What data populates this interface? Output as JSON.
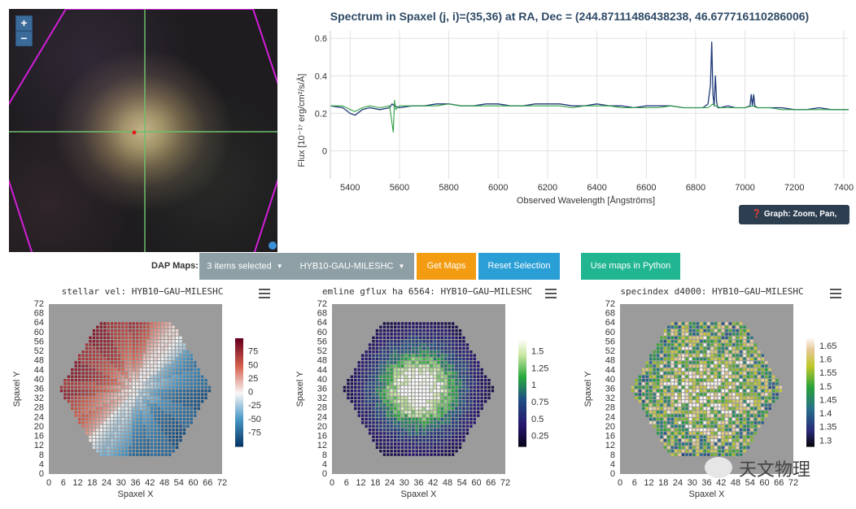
{
  "galaxy_image": {
    "zoom_in_label": "+",
    "zoom_out_label": "−",
    "marker_color": "#e0201c",
    "crosshair_color": "#6dbf6a",
    "hexagon_color": "#d21ed9"
  },
  "spectrum": {
    "graph_help_label": "Graph: Zoom, Pan, Values"
  },
  "toolbar": {
    "label": "DAP Maps:",
    "select_items_label": "3 items selected",
    "select_model_label": "HYB10-GAU-MILESHC",
    "get_maps_label": "Get Maps",
    "reset_label": "Reset Selection",
    "python_label": "Use maps in Python",
    "colors": {
      "select": "#8ea0a6",
      "get_maps": "#f39c12",
      "reset": "#2a9fd6",
      "python": "#21b591"
    }
  },
  "watermark": {
    "text": "天文物理"
  },
  "chart_data": [
    {
      "type": "line",
      "title": "Spectrum in Spaxel (j, i)=(35,36) at RA, Dec = (244.87111486438238, 46.677716110286006)",
      "xlabel": "Observed Wavelength [Ångströms]",
      "ylabel": "Flux [10⁻¹⁷ erg/cm²/s/Å]",
      "xlim": [
        5320,
        7420
      ],
      "ylim": [
        -0.15,
        0.64
      ],
      "x_ticks": [
        5400,
        5600,
        5800,
        6000,
        6200,
        6400,
        6600,
        6800,
        7000,
        7200,
        7400
      ],
      "x_tick_labels": [
        "5400",
        "5600",
        "5800",
        "6000",
        "6200",
        "6400",
        "6600",
        "6800",
        "7000",
        "7200",
        "7400"
      ],
      "y_ticks": [
        0,
        0.2,
        0.4,
        0.6
      ],
      "y_tick_labels": [
        "0",
        "0.2",
        "0.4",
        "0.6"
      ],
      "grid": true,
      "series": [
        {
          "color": "#1f3a78",
          "x": [
            5320,
            5370,
            5400,
            5420,
            5450,
            5480,
            5520,
            5560,
            5570,
            5580,
            5600,
            5650,
            5700,
            5750,
            5800,
            5850,
            5900,
            5950,
            6000,
            6050,
            6100,
            6150,
            6200,
            6250,
            6300,
            6350,
            6400,
            6450,
            6500,
            6550,
            6600,
            6650,
            6700,
            6750,
            6800,
            6830,
            6850,
            6860,
            6865,
            6870,
            6875,
            6880,
            6885,
            6890,
            6900,
            6930,
            6960,
            7000,
            7020,
            7025,
            7030,
            7035,
            7040,
            7050,
            7100,
            7150,
            7200,
            7250,
            7300,
            7350,
            7400,
            7420
          ],
          "y": [
            0.24,
            0.23,
            0.2,
            0.19,
            0.22,
            0.23,
            0.22,
            0.23,
            0.25,
            0.24,
            0.23,
            0.24,
            0.24,
            0.25,
            0.25,
            0.24,
            0.24,
            0.25,
            0.25,
            0.24,
            0.24,
            0.25,
            0.25,
            0.25,
            0.24,
            0.24,
            0.25,
            0.24,
            0.24,
            0.23,
            0.24,
            0.24,
            0.24,
            0.23,
            0.23,
            0.23,
            0.25,
            0.35,
            0.58,
            0.3,
            0.24,
            0.4,
            0.26,
            0.23,
            0.23,
            0.24,
            0.23,
            0.23,
            0.24,
            0.3,
            0.24,
            0.3,
            0.24,
            0.23,
            0.23,
            0.23,
            0.22,
            0.22,
            0.23,
            0.22,
            0.22,
            0.22
          ]
        },
        {
          "color": "#2ea043",
          "x": [
            5320,
            5370,
            5400,
            5420,
            5450,
            5480,
            5520,
            5560,
            5575,
            5580,
            5585,
            5600,
            5650,
            5700,
            5750,
            5800,
            5850,
            5900,
            5950,
            6000,
            6050,
            6100,
            6150,
            6200,
            6250,
            6300,
            6350,
            6400,
            6450,
            6500,
            6550,
            6600,
            6650,
            6700,
            6750,
            6800,
            6850,
            6870,
            6880,
            6900,
            6950,
            7000,
            7030,
            7050,
            7100,
            7150,
            7200,
            7250,
            7300,
            7350,
            7400,
            7420
          ],
          "y": [
            0.24,
            0.24,
            0.22,
            0.21,
            0.23,
            0.24,
            0.23,
            0.24,
            0.1,
            0.27,
            0.22,
            0.24,
            0.24,
            0.24,
            0.24,
            0.25,
            0.24,
            0.24,
            0.24,
            0.24,
            0.24,
            0.24,
            0.24,
            0.24,
            0.24,
            0.23,
            0.24,
            0.24,
            0.24,
            0.23,
            0.23,
            0.23,
            0.23,
            0.24,
            0.23,
            0.23,
            0.23,
            0.25,
            0.24,
            0.23,
            0.23,
            0.23,
            0.24,
            0.23,
            0.23,
            0.22,
            0.22,
            0.22,
            0.22,
            0.22,
            0.22,
            0.22
          ]
        }
      ]
    },
    {
      "type": "heatmap",
      "title": "stellar vel: HYB10−GAU−MILESHC",
      "xlabel": "Spaxel X",
      "ylabel": "Spaxel Y",
      "x_ticks": [
        0,
        6,
        12,
        18,
        24,
        30,
        36,
        42,
        48,
        54,
        60,
        66,
        72
      ],
      "y_ticks": [
        0,
        4,
        8,
        12,
        16,
        20,
        24,
        28,
        32,
        36,
        40,
        44,
        48,
        52,
        56,
        60,
        64,
        68,
        72
      ],
      "colorbar_ticks": [
        75,
        50,
        25,
        0,
        -25,
        -50,
        -75
      ],
      "colorbar_range": [
        -100,
        100
      ],
      "colorscale": "RdBu"
    },
    {
      "type": "heatmap",
      "title": "emline gflux ha 6564: HYB10−GAU−MILESHC",
      "xlabel": "Spaxel X",
      "ylabel": "Spaxel Y",
      "x_ticks": [
        0,
        6,
        12,
        18,
        24,
        30,
        36,
        42,
        48,
        54,
        60,
        66,
        72
      ],
      "y_ticks": [
        0,
        4,
        8,
        12,
        16,
        20,
        24,
        28,
        32,
        36,
        40,
        44,
        48,
        52,
        56,
        60,
        64,
        68,
        72
      ],
      "colorbar_ticks": [
        1.5,
        1.25,
        1,
        0.75,
        0.5,
        0.25
      ],
      "colorbar_range": [
        0.1,
        1.7
      ],
      "colorscale": "ocean-green"
    },
    {
      "type": "heatmap",
      "title": "specindex d4000: HYB10−GAU−MILESHC",
      "xlabel": "Spaxel X",
      "ylabel": "Spaxel Y",
      "x_ticks": [
        0,
        6,
        12,
        18,
        24,
        30,
        36,
        42,
        48,
        54,
        60,
        66,
        72
      ],
      "y_ticks": [
        0,
        4,
        8,
        12,
        16,
        20,
        24,
        28,
        32,
        36,
        40,
        44,
        48,
        52,
        56,
        60,
        64,
        68,
        72
      ],
      "colorbar_ticks": [
        1.65,
        1.6,
        1.55,
        1.5,
        1.45,
        1.4,
        1.35,
        1.3
      ],
      "colorbar_range": [
        1.28,
        1.68
      ],
      "colorscale": "gist-earth"
    }
  ]
}
